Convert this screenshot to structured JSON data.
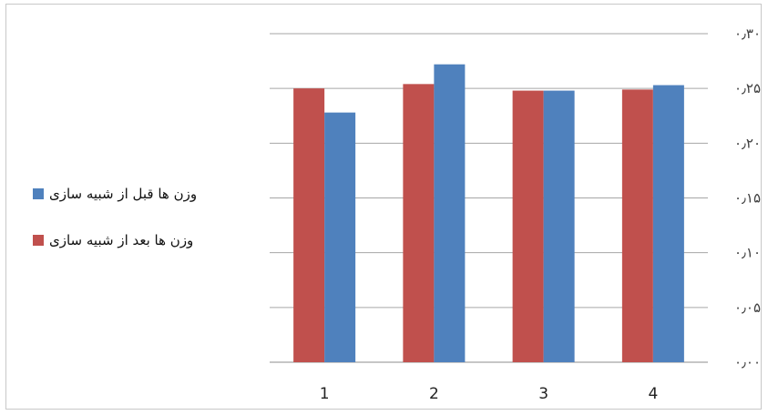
{
  "chart_data": {
    "type": "bar",
    "title": "",
    "xlabel": "",
    "ylabel": "",
    "categories": [
      "1",
      "2",
      "3",
      "4"
    ],
    "ylim": [
      0,
      0.3
    ],
    "yticks": [
      "۰٫۰۰",
      "۰٫۰۵",
      "۰٫۱۰",
      "۰٫۱۵",
      "۰٫۲۰",
      "۰٫۲۵",
      "۰٫۳۰"
    ],
    "grid": true,
    "legend_position": "left",
    "series": [
      {
        "name": "وزن ها بعد از شبیه سازی",
        "color": "#c0504d",
        "values": [
          0.25,
          0.254,
          0.248,
          0.249
        ]
      },
      {
        "name": "وزن ها قبل از شبیه سازی",
        "color": "#4f81bd",
        "values": [
          0.228,
          0.272,
          0.248,
          0.253
        ]
      }
    ]
  }
}
